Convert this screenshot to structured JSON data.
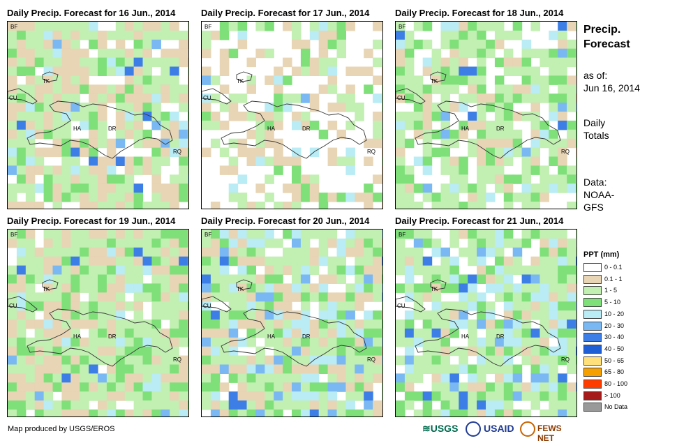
{
  "panels": [
    {
      "title": "Daily Precip. Forecast for 16 Jun., 2014",
      "seed": 16
    },
    {
      "title": "Daily Precip. Forecast for 17 Jun., 2014",
      "seed": 17
    },
    {
      "title": "Daily Precip. Forecast for 18 Jun., 2014",
      "seed": 18
    },
    {
      "title": "Daily Precip. Forecast for 19 Jun., 2014",
      "seed": 19
    },
    {
      "title": "Daily Precip. Forecast for 20 Jun., 2014",
      "seed": 20
    },
    {
      "title": "Daily Precip. Forecast for 21 Jun., 2014",
      "seed": 21
    }
  ],
  "places": {
    "bf": "BF",
    "tk": "TK",
    "cu": "CU",
    "ha": "HA",
    "dr": "DR",
    "rq": "RQ"
  },
  "side": {
    "title": "Precip. Forecast",
    "as_of_label": "as of:",
    "as_of_date": "Jun 16, 2014",
    "daily": "Daily",
    "totals": "Totals",
    "data_label": "Data:",
    "source_1": "NOAA-",
    "source_2": "GFS"
  },
  "legend": {
    "title": "PPT (mm)",
    "items": [
      {
        "label": "0 - 0.1",
        "color": "#ffffff"
      },
      {
        "label": "0.1 - 1",
        "color": "#e8d5b5"
      },
      {
        "label": "1 - 5",
        "color": "#c2efb2"
      },
      {
        "label": "5 - 10",
        "color": "#7fe07a"
      },
      {
        "label": "10 - 20",
        "color": "#b9ecf5"
      },
      {
        "label": "20 - 30",
        "color": "#79b8f2"
      },
      {
        "label": "30 - 40",
        "color": "#3c7ee6"
      },
      {
        "label": "40 - 50",
        "color": "#1f5fd6"
      },
      {
        "label": "50 - 65",
        "color": "#ffe07a"
      },
      {
        "label": "65 - 80",
        "color": "#f5a000"
      },
      {
        "label": "80 - 100",
        "color": "#ff3c00"
      },
      {
        "label": "> 100",
        "color": "#a51b1b"
      },
      {
        "label": "No Data",
        "color": "#999999"
      }
    ]
  },
  "footer": "Map produced by USGS/EROS",
  "logos": {
    "usgs": "USGS",
    "usaid": "USAID",
    "fewsnet": "FEWS NET"
  }
}
